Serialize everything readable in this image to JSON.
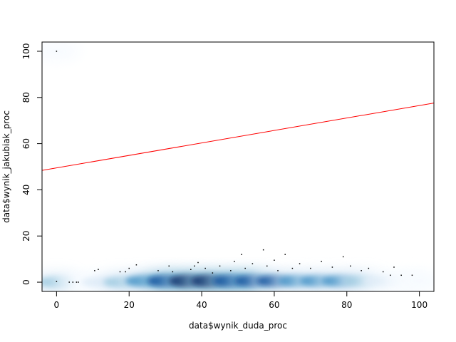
{
  "chart_data": {
    "type": "scatter",
    "style": "smoothScatter",
    "xlabel": "data$wynik_duda_proc",
    "ylabel": "data$wynik_jakubiak_proc",
    "xlim": [
      -4,
      104
    ],
    "ylim": [
      -4,
      104
    ],
    "x_ticks": [
      0,
      20,
      40,
      60,
      80,
      100
    ],
    "y_ticks": [
      0,
      20,
      40,
      60,
      80,
      100
    ],
    "grid": false,
    "density_colors": [
      "#ffffff",
      "#f7fbff",
      "#deebf7",
      "#9ecae1",
      "#4292c6",
      "#08519c",
      "#08306b"
    ],
    "line_color": "#ff0000",
    "regression_line": {
      "intercept": 49.5,
      "slope": 0.27
    },
    "density_band": [
      {
        "x": 0,
        "y": 0,
        "intensity": 0.55
      },
      {
        "x": 0,
        "y": 100,
        "intensity": 0.12
      },
      {
        "x": 6,
        "y": 0,
        "intensity": 0.3
      },
      {
        "x": 12,
        "y": 0,
        "intensity": 0.4
      },
      {
        "x": 18,
        "y": 0,
        "intensity": 0.5
      },
      {
        "x": 24,
        "y": 0.5,
        "intensity": 0.65
      },
      {
        "x": 30,
        "y": 0.5,
        "intensity": 0.85
      },
      {
        "x": 36,
        "y": 0.5,
        "intensity": 1.0
      },
      {
        "x": 42,
        "y": 0.5,
        "intensity": 1.0
      },
      {
        "x": 48,
        "y": 0.5,
        "intensity": 0.9
      },
      {
        "x": 54,
        "y": 0.5,
        "intensity": 0.8
      },
      {
        "x": 60,
        "y": 0.5,
        "intensity": 0.75
      },
      {
        "x": 66,
        "y": 0.5,
        "intensity": 0.7
      },
      {
        "x": 72,
        "y": 0.5,
        "intensity": 0.65
      },
      {
        "x": 78,
        "y": 0.5,
        "intensity": 0.6
      },
      {
        "x": 84,
        "y": 0.5,
        "intensity": 0.5
      },
      {
        "x": 90,
        "y": 0.5,
        "intensity": 0.4
      },
      {
        "x": 96,
        "y": 0.5,
        "intensity": 0.3
      },
      {
        "x": 100,
        "y": 0.5,
        "intensity": 0.25
      }
    ],
    "outlier_points": [
      {
        "x": 0,
        "y": 100
      },
      {
        "x": 0,
        "y": 0.3
      },
      {
        "x": 3.5,
        "y": 0
      },
      {
        "x": 4.5,
        "y": 0
      },
      {
        "x": 5.5,
        "y": 0
      },
      {
        "x": 6,
        "y": 0
      },
      {
        "x": 10.5,
        "y": 5
      },
      {
        "x": 11.5,
        "y": 5.5
      },
      {
        "x": 17.5,
        "y": 4.5
      },
      {
        "x": 19,
        "y": 4.5
      },
      {
        "x": 20,
        "y": 6
      },
      {
        "x": 22,
        "y": 7.5
      },
      {
        "x": 28,
        "y": 5
      },
      {
        "x": 31,
        "y": 7
      },
      {
        "x": 32,
        "y": 4.5
      },
      {
        "x": 37,
        "y": 5.5
      },
      {
        "x": 38,
        "y": 7
      },
      {
        "x": 39,
        "y": 8.5
      },
      {
        "x": 41,
        "y": 6
      },
      {
        "x": 43,
        "y": 4
      },
      {
        "x": 45,
        "y": 7
      },
      {
        "x": 48,
        "y": 5
      },
      {
        "x": 49,
        "y": 9
      },
      {
        "x": 51,
        "y": 12
      },
      {
        "x": 52,
        "y": 6
      },
      {
        "x": 54,
        "y": 8
      },
      {
        "x": 57,
        "y": 14
      },
      {
        "x": 58,
        "y": 7
      },
      {
        "x": 60,
        "y": 9.5
      },
      {
        "x": 61,
        "y": 5
      },
      {
        "x": 63,
        "y": 12
      },
      {
        "x": 65,
        "y": 6
      },
      {
        "x": 67,
        "y": 8
      },
      {
        "x": 70,
        "y": 6
      },
      {
        "x": 73,
        "y": 9
      },
      {
        "x": 76,
        "y": 6.5
      },
      {
        "x": 79,
        "y": 11
      },
      {
        "x": 81,
        "y": 7
      },
      {
        "x": 84,
        "y": 5
      },
      {
        "x": 86,
        "y": 6
      },
      {
        "x": 90,
        "y": 4.5
      },
      {
        "x": 92,
        "y": 3
      },
      {
        "x": 93,
        "y": 6.5
      },
      {
        "x": 95,
        "y": 3
      },
      {
        "x": 98,
        "y": 3
      }
    ]
  }
}
